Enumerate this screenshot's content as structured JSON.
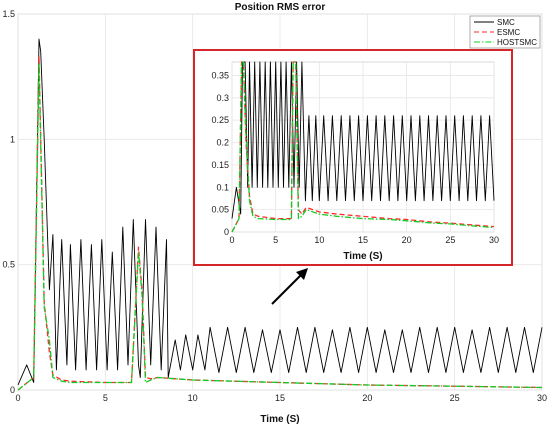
{
  "chart_data": [
    {
      "type": "line",
      "title": "Position RMS error",
      "xlabel": "Time (S)",
      "ylabel": "",
      "xlim": [
        0,
        30
      ],
      "ylim": [
        0,
        1.5
      ],
      "xticks": [
        "0",
        "5",
        "10",
        "15",
        "20",
        "25",
        "30"
      ],
      "yticks": [
        "0",
        "0.5",
        "1",
        "1.5"
      ],
      "grid": true,
      "legend_position": "top-right",
      "series": [
        {
          "name": "SMC",
          "color": "#000000",
          "style": "solid",
          "x": [
            0,
            0.5,
            0.9,
            1.2,
            1.3,
            1.5,
            1.8,
            2.0,
            2.2,
            2.5,
            2.8,
            3.0,
            3.3,
            3.6,
            3.9,
            4.2,
            4.5,
            4.8,
            5.1,
            5.4,
            5.7,
            6.0,
            6.3,
            6.6,
            6.9,
            7.0,
            7.3,
            7.6,
            7.9,
            8.2,
            8.5,
            8.6,
            9.0,
            9.3,
            9.6,
            10.0,
            10.3,
            10.7,
            11.0,
            11.5,
            12.0,
            12.5,
            13.0,
            13.5,
            14.0,
            14.5,
            15.0,
            15.5,
            16.0,
            16.5,
            17.0,
            17.5,
            18.0,
            18.5,
            19.0,
            19.5,
            20.0,
            20.5,
            21.0,
            21.5,
            22.0,
            22.5,
            23.0,
            23.5,
            24.0,
            24.5,
            25.0,
            25.5,
            26.0,
            26.5,
            27.0,
            27.5,
            28.0,
            28.5,
            29.0,
            29.5,
            30.0
          ],
          "y": [
            0.02,
            0.1,
            0.03,
            1.4,
            1.35,
            1.0,
            0.4,
            0.62,
            0.08,
            0.6,
            0.1,
            0.58,
            0.08,
            0.6,
            0.08,
            0.58,
            0.08,
            0.6,
            0.08,
            0.55,
            0.08,
            0.65,
            0.1,
            0.68,
            0.1,
            0.05,
            0.68,
            0.1,
            0.65,
            0.08,
            0.6,
            0.05,
            0.2,
            0.08,
            0.22,
            0.08,
            0.22,
            0.08,
            0.25,
            0.07,
            0.25,
            0.07,
            0.25,
            0.07,
            0.24,
            0.07,
            0.24,
            0.07,
            0.25,
            0.07,
            0.25,
            0.07,
            0.24,
            0.07,
            0.25,
            0.07,
            0.25,
            0.07,
            0.24,
            0.07,
            0.24,
            0.07,
            0.25,
            0.07,
            0.25,
            0.07,
            0.25,
            0.07,
            0.24,
            0.07,
            0.25,
            0.07,
            0.25,
            0.07,
            0.25,
            0.07,
            0.25
          ]
        },
        {
          "name": "ESMC",
          "color": "#ff2a2a",
          "style": "dashed",
          "x": [
            0,
            0.9,
            1.2,
            1.5,
            1.8,
            2.0,
            2.5,
            3.0,
            5.0,
            6.5,
            6.9,
            7.1,
            7.3,
            7.6,
            8.0,
            10.0,
            15.0,
            20.0,
            25.0,
            30.0
          ],
          "y": [
            0.0,
            0.05,
            1.33,
            0.35,
            0.15,
            0.06,
            0.04,
            0.035,
            0.03,
            0.03,
            0.57,
            0.4,
            0.05,
            0.045,
            0.05,
            0.04,
            0.03,
            0.02,
            0.015,
            0.01
          ]
        },
        {
          "name": "HOSTSMC",
          "color": "#11cc22",
          "style": "dashdot",
          "x": [
            0,
            0.9,
            1.2,
            1.5,
            1.8,
            2.0,
            2.5,
            3.0,
            5.0,
            6.5,
            6.9,
            7.1,
            7.3,
            7.6,
            8.0,
            10.0,
            15.0,
            20.0,
            25.0,
            30.0
          ],
          "y": [
            0.0,
            0.05,
            1.3,
            0.33,
            0.2,
            0.05,
            0.035,
            0.03,
            0.03,
            0.03,
            0.55,
            0.38,
            0.03,
            0.04,
            0.05,
            0.04,
            0.03,
            0.02,
            0.015,
            0.01
          ]
        }
      ]
    },
    {
      "type": "line",
      "title": "",
      "xlabel": "Time (S)",
      "ylabel": "",
      "xlim": [
        0,
        30
      ],
      "ylim": [
        0,
        0.38
      ],
      "xticks": [
        "0",
        "5",
        "10",
        "15",
        "20",
        "25",
        "30"
      ],
      "yticks": [
        "0",
        "0.05",
        "0.1",
        "0.15",
        "0.2",
        "0.25",
        "0.3",
        "0.35"
      ],
      "grid": true,
      "border_color": "#d62728",
      "series": [
        {
          "name": "SMC",
          "color": "#000000",
          "style": "solid",
          "x": [
            0,
            0.5,
            1.0,
            1.2,
            1.5,
            1.8,
            2.0,
            2.3,
            2.6,
            2.9,
            3.2,
            3.5,
            3.8,
            4.1,
            4.4,
            4.7,
            5.0,
            5.3,
            5.6,
            5.9,
            6.2,
            6.5,
            6.8,
            7.1,
            7.4,
            7.7,
            8.0,
            8.4,
            8.8,
            9.2,
            9.6,
            10.0,
            10.5,
            11.0,
            11.5,
            12.0,
            12.5,
            13.0,
            13.5,
            14.0,
            14.5,
            15.0,
            15.5,
            16.0,
            16.5,
            17.0,
            17.5,
            18.0,
            18.5,
            19.0,
            19.5,
            20.0,
            20.5,
            21.0,
            21.5,
            22.0,
            22.5,
            23.0,
            23.5,
            24.0,
            24.5,
            25.0,
            25.5,
            26.0,
            26.5,
            27.0,
            27.5,
            28.0,
            28.5,
            29.0,
            29.5,
            30.0
          ],
          "y": [
            0.03,
            0.1,
            0.04,
            0.38,
            0.38,
            0.1,
            0.38,
            0.1,
            0.38,
            0.1,
            0.38,
            0.1,
            0.38,
            0.1,
            0.38,
            0.1,
            0.38,
            0.1,
            0.38,
            0.1,
            0.38,
            0.1,
            0.38,
            0.1,
            0.38,
            0.1,
            0.38,
            0.07,
            0.26,
            0.07,
            0.26,
            0.07,
            0.26,
            0.07,
            0.26,
            0.07,
            0.26,
            0.07,
            0.26,
            0.07,
            0.26,
            0.07,
            0.26,
            0.07,
            0.26,
            0.07,
            0.26,
            0.07,
            0.26,
            0.07,
            0.26,
            0.07,
            0.26,
            0.07,
            0.26,
            0.07,
            0.26,
            0.07,
            0.26,
            0.07,
            0.26,
            0.07,
            0.26,
            0.07,
            0.26,
            0.07,
            0.26,
            0.07,
            0.26,
            0.07,
            0.26,
            0.07
          ]
        },
        {
          "name": "ESMC",
          "color": "#ff2a2a",
          "style": "dashed",
          "x": [
            0,
            0.8,
            1.1,
            1.3,
            1.6,
            2.0,
            2.4,
            3.0,
            5.0,
            6.8,
            7.0,
            7.3,
            7.6,
            8.0,
            8.5,
            10.0,
            12.0,
            15.0,
            18.0,
            20.0,
            23.0,
            25.0,
            28.0,
            30.0
          ],
          "y": [
            0.0,
            0.03,
            0.38,
            0.38,
            0.2,
            0.08,
            0.04,
            0.035,
            0.03,
            0.03,
            0.38,
            0.38,
            0.05,
            0.04,
            0.055,
            0.045,
            0.04,
            0.035,
            0.03,
            0.028,
            0.022,
            0.02,
            0.015,
            0.012
          ]
        },
        {
          "name": "HOSTSMC",
          "color": "#11cc22",
          "style": "dashdot",
          "x": [
            0,
            0.8,
            1.1,
            1.3,
            1.6,
            2.0,
            2.4,
            3.0,
            5.0,
            6.8,
            7.0,
            7.3,
            7.6,
            8.0,
            8.5,
            10.0,
            12.0,
            15.0,
            18.0,
            20.0,
            23.0,
            25.0,
            28.0,
            30.0
          ],
          "y": [
            0.0,
            0.03,
            0.38,
            0.38,
            0.22,
            0.07,
            0.035,
            0.03,
            0.028,
            0.028,
            0.38,
            0.38,
            0.03,
            0.035,
            0.05,
            0.04,
            0.035,
            0.03,
            0.028,
            0.025,
            0.02,
            0.018,
            0.013,
            0.01
          ]
        }
      ]
    }
  ]
}
